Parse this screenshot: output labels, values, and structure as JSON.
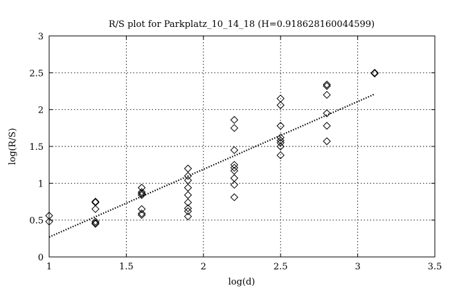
{
  "chart_data": {
    "type": "scatter",
    "title": "R/S plot for Parkplatz_10_14_18 (H=0.918628160044599)",
    "xlabel": "log(d)",
    "ylabel": "log(R/S)",
    "xlim": [
      1,
      3.5
    ],
    "ylim": [
      0,
      3
    ],
    "xticks": [
      "1",
      "1.5",
      "2",
      "2.5",
      "3",
      "3.5"
    ],
    "yticks": [
      "0",
      "0.5",
      "1",
      "1.5",
      "2",
      "2.5",
      "3"
    ],
    "grid": true,
    "marker": "diamond",
    "points": [
      [
        1.0,
        0.56
      ],
      [
        1.0,
        0.48
      ],
      [
        1.3,
        0.75
      ],
      [
        1.3,
        0.74
      ],
      [
        1.3,
        0.65
      ],
      [
        1.3,
        0.48
      ],
      [
        1.3,
        0.46
      ],
      [
        1.3,
        0.45
      ],
      [
        1.6,
        0.94
      ],
      [
        1.6,
        0.88
      ],
      [
        1.6,
        0.86
      ],
      [
        1.6,
        0.84
      ],
      [
        1.6,
        0.65
      ],
      [
        1.6,
        0.59
      ],
      [
        1.6,
        0.57
      ],
      [
        1.9,
        1.2
      ],
      [
        1.9,
        1.1
      ],
      [
        1.9,
        1.04
      ],
      [
        1.9,
        0.94
      ],
      [
        1.9,
        0.84
      ],
      [
        1.9,
        0.74
      ],
      [
        1.9,
        0.66
      ],
      [
        1.9,
        0.62
      ],
      [
        1.9,
        0.55
      ],
      [
        2.2,
        1.86
      ],
      [
        2.2,
        1.75
      ],
      [
        2.2,
        1.45
      ],
      [
        2.2,
        1.25
      ],
      [
        2.2,
        1.21
      ],
      [
        2.2,
        1.17
      ],
      [
        2.2,
        1.07
      ],
      [
        2.2,
        0.98
      ],
      [
        2.2,
        0.81
      ],
      [
        2.5,
        2.15
      ],
      [
        2.5,
        2.06
      ],
      [
        2.5,
        1.78
      ],
      [
        2.5,
        1.62
      ],
      [
        2.5,
        1.58
      ],
      [
        2.5,
        1.55
      ],
      [
        2.5,
        1.5
      ],
      [
        2.5,
        1.38
      ],
      [
        2.8,
        2.34
      ],
      [
        2.8,
        2.32
      ],
      [
        2.8,
        2.2
      ],
      [
        2.8,
        1.95
      ],
      [
        2.8,
        1.78
      ],
      [
        2.8,
        1.57
      ],
      [
        3.11,
        2.5
      ],
      [
        3.11,
        2.49
      ]
    ],
    "fit_line": {
      "x": [
        1.0,
        3.11
      ],
      "y": [
        0.27,
        2.21
      ]
    }
  }
}
